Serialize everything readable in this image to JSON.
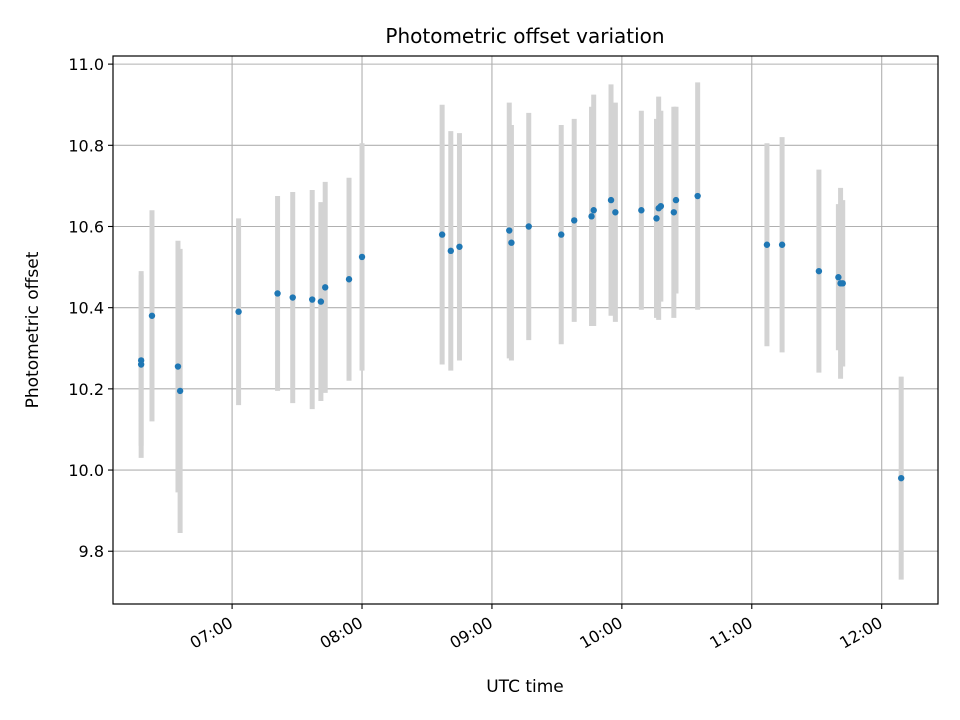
{
  "chart_data": {
    "type": "scatter",
    "title": "Photometric offset variation",
    "xlabel": "UTC time",
    "ylabel": "Photometric offset",
    "xlim": [
      "06:05",
      "12:26"
    ],
    "ylim": [
      9.67,
      11.02
    ],
    "x_ticks": [
      "07:00",
      "08:00",
      "09:00",
      "10:00",
      "11:00",
      "12:00"
    ],
    "y_ticks": [
      "9.8",
      "10.0",
      "10.2",
      "10.4",
      "10.6",
      "10.8",
      "11.0"
    ],
    "grid": true,
    "point_color": "#1f77b4",
    "errorbar_color": "#d3d3d3",
    "points": [
      {
        "x": "06:18",
        "y": 10.27,
        "yerr": 0.21
      },
      {
        "x": "06:18",
        "y": 10.26,
        "yerr": 0.23
      },
      {
        "x": "06:23",
        "y": 10.38,
        "yerr": 0.26
      },
      {
        "x": "06:35",
        "y": 10.255,
        "yerr": 0.31
      },
      {
        "x": "06:36",
        "y": 10.195,
        "yerr": 0.35
      },
      {
        "x": "07:03",
        "y": 10.39,
        "yerr": 0.23
      },
      {
        "x": "07:21",
        "y": 10.435,
        "yerr": 0.24
      },
      {
        "x": "07:28",
        "y": 10.425,
        "yerr": 0.26
      },
      {
        "x": "07:37",
        "y": 10.42,
        "yerr": 0.27
      },
      {
        "x": "07:41",
        "y": 10.415,
        "yerr": 0.245
      },
      {
        "x": "07:43",
        "y": 10.45,
        "yerr": 0.26
      },
      {
        "x": "07:54",
        "y": 10.47,
        "yerr": 0.25
      },
      {
        "x": "08:00",
        "y": 10.525,
        "yerr": 0.28
      },
      {
        "x": "08:37",
        "y": 10.58,
        "yerr": 0.32
      },
      {
        "x": "08:41",
        "y": 10.54,
        "yerr": 0.295
      },
      {
        "x": "08:45",
        "y": 10.55,
        "yerr": 0.28
      },
      {
        "x": "09:08",
        "y": 10.59,
        "yerr": 0.315
      },
      {
        "x": "09:09",
        "y": 10.56,
        "yerr": 0.29
      },
      {
        "x": "09:17",
        "y": 10.6,
        "yerr": 0.28
      },
      {
        "x": "09:32",
        "y": 10.58,
        "yerr": 0.27
      },
      {
        "x": "09:38",
        "y": 10.615,
        "yerr": 0.25
      },
      {
        "x": "09:46",
        "y": 10.625,
        "yerr": 0.27
      },
      {
        "x": "09:47",
        "y": 10.64,
        "yerr": 0.285
      },
      {
        "x": "09:55",
        "y": 10.665,
        "yerr": 0.285
      },
      {
        "x": "09:57",
        "y": 10.635,
        "yerr": 0.27
      },
      {
        "x": "10:09",
        "y": 10.64,
        "yerr": 0.245
      },
      {
        "x": "10:16",
        "y": 10.62,
        "yerr": 0.245
      },
      {
        "x": "10:17",
        "y": 10.645,
        "yerr": 0.275
      },
      {
        "x": "10:18",
        "y": 10.65,
        "yerr": 0.235
      },
      {
        "x": "10:24",
        "y": 10.635,
        "yerr": 0.26
      },
      {
        "x": "10:25",
        "y": 10.665,
        "yerr": 0.23
      },
      {
        "x": "10:35",
        "y": 10.675,
        "yerr": 0.28
      },
      {
        "x": "11:07",
        "y": 10.555,
        "yerr": 0.25
      },
      {
        "x": "11:14",
        "y": 10.555,
        "yerr": 0.265
      },
      {
        "x": "11:31",
        "y": 10.49,
        "yerr": 0.25
      },
      {
        "x": "11:40",
        "y": 10.475,
        "yerr": 0.18
      },
      {
        "x": "11:41",
        "y": 10.46,
        "yerr": 0.235
      },
      {
        "x": "11:42",
        "y": 10.46,
        "yerr": 0.205
      },
      {
        "x": "12:09",
        "y": 9.98,
        "yerr": 0.25
      }
    ]
  }
}
